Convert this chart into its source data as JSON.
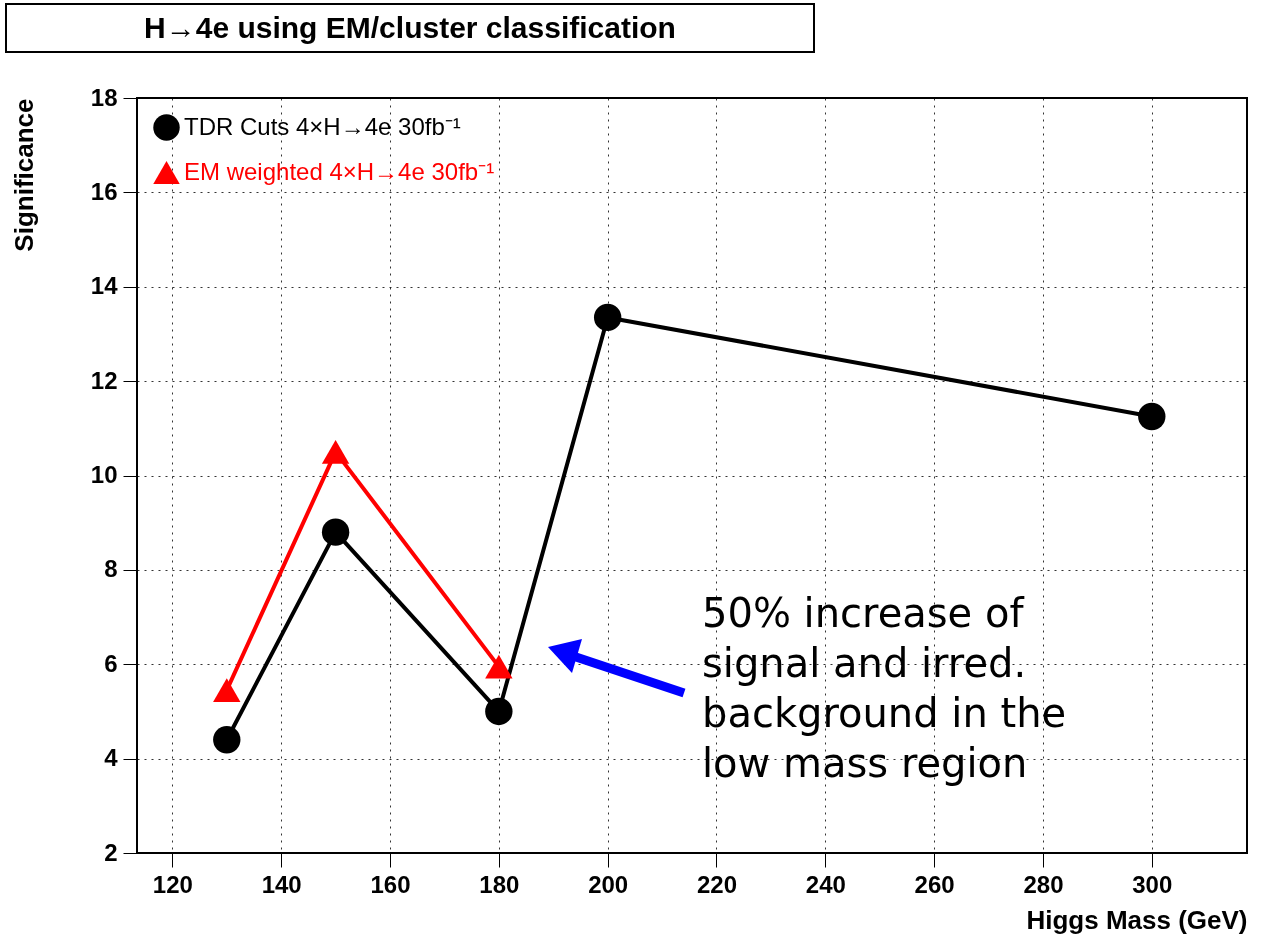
{
  "chart_data": {
    "type": "line",
    "title": "H→4e using EM/cluster classification",
    "xlabel": "Higgs Mass (GeV)",
    "ylabel": "Significance",
    "x": [
      130,
      150,
      180,
      200,
      300
    ],
    "series": [
      {
        "name": "TDR Cuts 4×H→4e  30fb⁻¹",
        "color": "#000000",
        "marker": "circle",
        "values": [
          4.4,
          8.8,
          5.0,
          13.35,
          11.25
        ]
      },
      {
        "name": "EM weighted 4×H→4e  30fb⁻¹",
        "color": "#ff0000",
        "marker": "triangle",
        "values": [
          5.45,
          10.5,
          5.95,
          null,
          null
        ]
      }
    ],
    "xlim": [
      113.5,
      317.5
    ],
    "xticks": [
      120,
      140,
      160,
      180,
      200,
      220,
      240,
      260,
      280,
      300
    ],
    "ylim": [
      2,
      18
    ],
    "yticks": [
      2,
      4,
      6,
      8,
      10,
      12,
      14,
      16,
      18
    ],
    "grid": true,
    "legend": "top left",
    "line_style": "solid",
    "annotations": [
      "50% increase of\nsignal and irred.\nbackground in the\nlow mass region"
    ]
  }
}
